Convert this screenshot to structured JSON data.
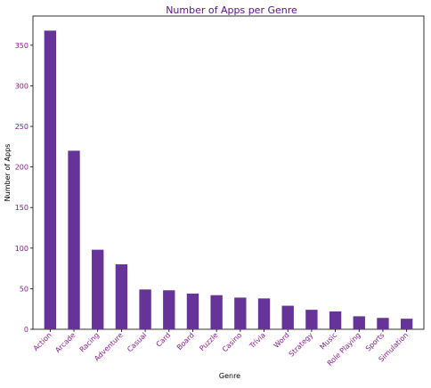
{
  "chart_data": {
    "type": "bar",
    "title": "Number of Apps per Genre",
    "xlabel": "Genre",
    "ylabel": "Number of Apps",
    "categories": [
      "Action",
      "Arcade",
      "Racing",
      "Adventure",
      "Casual",
      "Card",
      "Board",
      "Puzzle",
      "Casino",
      "Trivia",
      "Word",
      "Strategy",
      "Music",
      "Role Playing",
      "Sports",
      "Simulation"
    ],
    "values": [
      368,
      220,
      98,
      80,
      49,
      48,
      44,
      42,
      39,
      38,
      29,
      24,
      22,
      16,
      14,
      13
    ],
    "ylim": [
      0,
      386
    ],
    "yticks": [
      0,
      50,
      100,
      150,
      200,
      250,
      300,
      350
    ],
    "grid": false,
    "legend": "none"
  },
  "colors": {
    "bar": "#663399",
    "title": "#5b0f8c",
    "tick_label": "#8b1a8b",
    "axis_label": "#000000",
    "axis_line": "#000000"
  }
}
